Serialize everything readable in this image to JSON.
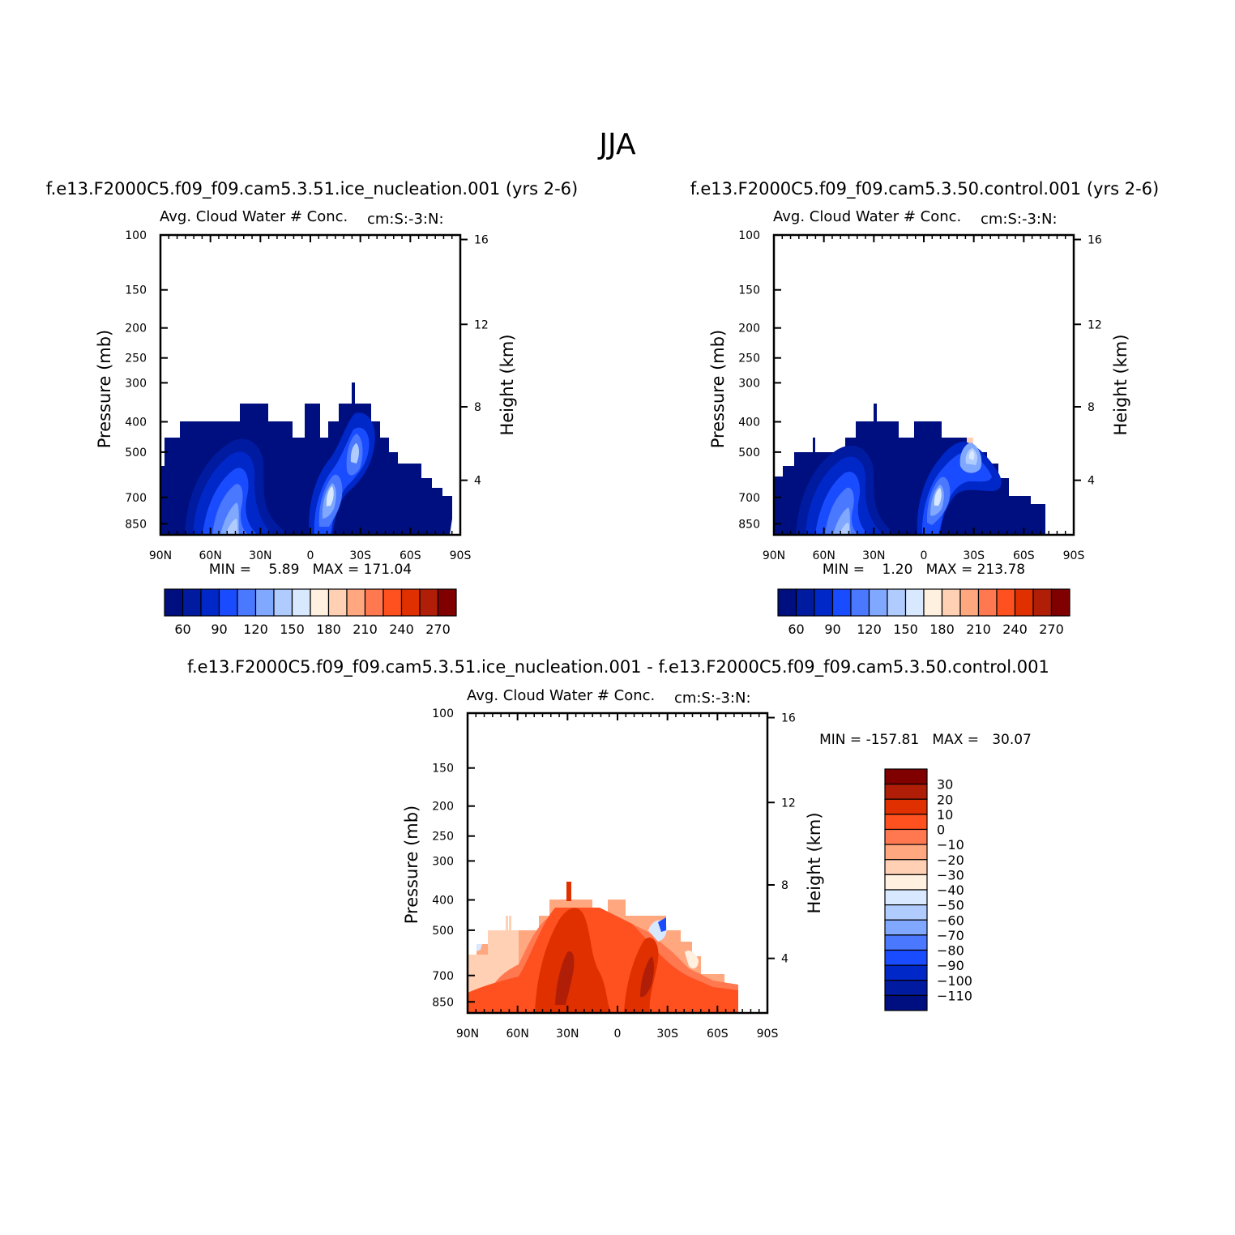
{
  "figure_title": "JJA",
  "chart_data": [
    {
      "type": "heatmap",
      "id": "p1",
      "case_title": "f.e13.F2000C5.f09_f09.cam5.3.51.ice_nucleation.001 (yrs 2-6)",
      "subtitle": "Avg. Cloud Water # Conc.",
      "units_label": "cm:S:-3:N:",
      "ylabel": "Pressure (mb)",
      "right_ylabel": "Height (km)",
      "x_ticks": [
        "90N",
        "60N",
        "30N",
        "0",
        "30S",
        "60S",
        "90S"
      ],
      "x_range": [
        90,
        -90
      ],
      "y_ticks": [
        100,
        150,
        200,
        250,
        300,
        400,
        500,
        700,
        850
      ],
      "y_range": [
        100,
        1000
      ],
      "height_ticks": [
        16,
        12,
        8,
        4
      ],
      "stats_text": "MIN =    5.89   MAX = 171.04",
      "min": 5.89,
      "max": 171.04,
      "colorbar": {
        "orientation": "horizontal",
        "colors": [
          "#000f80",
          "#001aa0",
          "#0028c8",
          "#1a4cff",
          "#4a78ff",
          "#80a8ff",
          "#b0ccff",
          "#d8e8ff",
          "#fff0e0",
          "#ffd0b4",
          "#ffa880",
          "#ff7850",
          "#ff5020",
          "#e03000",
          "#b01e08",
          "#800000"
        ],
        "tick_labels": [
          "60",
          "90",
          "120",
          "150",
          "180",
          "210",
          "240",
          "270"
        ]
      }
    },
    {
      "type": "heatmap",
      "id": "p2",
      "case_title": "f.e13.F2000C5.f09_f09.cam5.3.50.control.001 (yrs 2-6)",
      "subtitle": "Avg. Cloud Water # Conc.",
      "units_label": "cm:S:-3:N:",
      "ylabel": "Pressure (mb)",
      "right_ylabel": "Height (km)",
      "x_ticks": [
        "90N",
        "60N",
        "30N",
        "0",
        "30S",
        "60S",
        "90S"
      ],
      "x_range": [
        90,
        -90
      ],
      "y_ticks": [
        100,
        150,
        200,
        250,
        300,
        400,
        500,
        700,
        850
      ],
      "y_range": [
        100,
        1000
      ],
      "height_ticks": [
        16,
        12,
        8,
        4
      ],
      "stats_text": "MIN =    1.20   MAX = 213.78",
      "min": 1.2,
      "max": 213.78,
      "colorbar": {
        "orientation": "horizontal",
        "colors": [
          "#000f80",
          "#001aa0",
          "#0028c8",
          "#1a4cff",
          "#4a78ff",
          "#80a8ff",
          "#b0ccff",
          "#d8e8ff",
          "#fff0e0",
          "#ffd0b4",
          "#ffa880",
          "#ff7850",
          "#ff5020",
          "#e03000",
          "#b01e08",
          "#800000"
        ],
        "tick_labels": [
          "60",
          "90",
          "120",
          "150",
          "180",
          "210",
          "240",
          "270"
        ]
      }
    },
    {
      "type": "heatmap",
      "id": "p3",
      "case_title": "f.e13.F2000C5.f09_f09.cam5.3.51.ice_nucleation.001 - f.e13.F2000C5.f09_f09.cam5.3.50.control.001",
      "subtitle": "Avg. Cloud Water # Conc.",
      "units_label": "cm:S:-3:N:",
      "ylabel": "Pressure (mb)",
      "right_ylabel": "Height (km)",
      "x_ticks": [
        "90N",
        "60N",
        "30N",
        "0",
        "30S",
        "60S",
        "90S"
      ],
      "x_range": [
        90,
        -90
      ],
      "y_ticks": [
        100,
        150,
        200,
        250,
        300,
        400,
        500,
        700,
        850
      ],
      "y_range": [
        100,
        1000
      ],
      "height_ticks": [
        16,
        12,
        8,
        4
      ],
      "stats_text": "MIN = -157.81   MAX =   30.07",
      "min": -157.81,
      "max": 30.07,
      "colorbar": {
        "orientation": "vertical",
        "colors": [
          "#800000",
          "#b01e08",
          "#e03000",
          "#ff5020",
          "#ff7850",
          "#ffa880",
          "#ffd0b4",
          "#fff0e0",
          "#d8e8ff",
          "#b0ccff",
          "#80a8ff",
          "#4a78ff",
          "#1a4cff",
          "#0028c8",
          "#001aa0",
          "#000f80"
        ],
        "tick_labels": [
          "30",
          "20",
          "10",
          "0",
          "-10",
          "-20",
          "-30",
          "-40",
          "-50",
          "-60",
          "-70",
          "-80",
          "-90",
          "-100",
          "-110"
        ]
      }
    }
  ]
}
